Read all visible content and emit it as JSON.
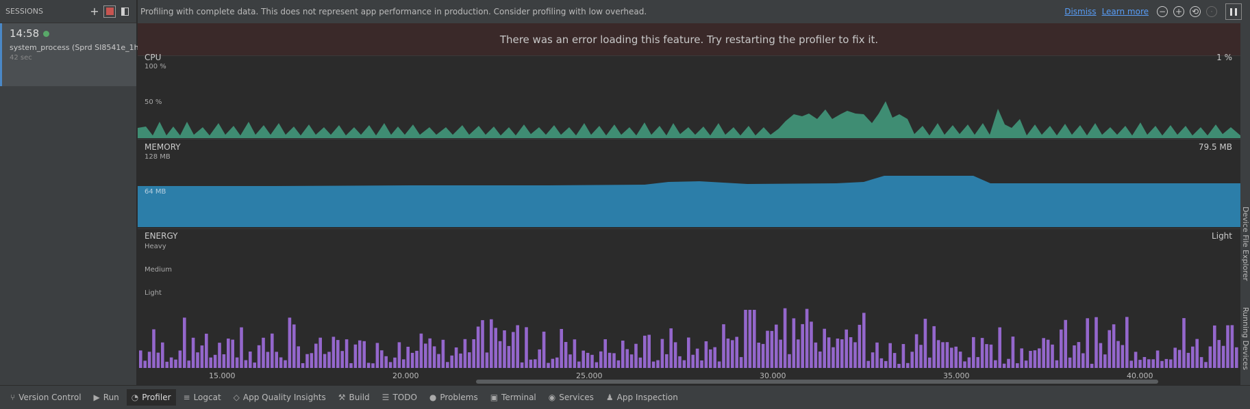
{
  "sessions": {
    "header": "SESSIONS",
    "add_icon": "+",
    "session": {
      "time": "14:58",
      "process": "system_process (Sprd SI8541e_1h...",
      "duration": "42 sec"
    }
  },
  "notice": {
    "message": "Profiling with complete data. This does not represent app performance in production. Consider profiling with low overhead.",
    "dismiss": "Dismiss",
    "learn_more": "Learn more"
  },
  "error_banner": "There was an error loading this feature. Try restarting the profiler to fix it.",
  "cpu": {
    "title": "CPU",
    "value": "1 %",
    "axis": [
      "100 %",
      "50 %"
    ]
  },
  "memory": {
    "title": "MEMORY",
    "value": "79.5 MB",
    "axis": [
      "128 MB",
      "64 MB"
    ]
  },
  "energy": {
    "title": "ENERGY",
    "value": "Light",
    "axis": [
      "Heavy",
      "Medium",
      "Light"
    ]
  },
  "timeline": {
    "ticks": [
      "15.000",
      "20.000",
      "25.000",
      "30.000",
      "35.000",
      "40.000"
    ]
  },
  "right_strip": {
    "tabs": [
      "Device File Explorer",
      "Running Devices"
    ]
  },
  "bottom_bar": {
    "tabs": [
      {
        "label": "Version Control",
        "icon": "branch-icon"
      },
      {
        "label": "Run",
        "icon": "play-icon"
      },
      {
        "label": "Profiler",
        "icon": "profiler-icon",
        "active": true
      },
      {
        "label": "Logcat",
        "icon": "logcat-icon"
      },
      {
        "label": "App Quality Insights",
        "icon": "gem-icon"
      },
      {
        "label": "Build",
        "icon": "hammer-icon"
      },
      {
        "label": "TODO",
        "icon": "list-icon"
      },
      {
        "label": "Problems",
        "icon": "info-icon"
      },
      {
        "label": "Terminal",
        "icon": "terminal-icon"
      },
      {
        "label": "Services",
        "icon": "services-icon"
      },
      {
        "label": "App Inspection",
        "icon": "inspection-icon"
      }
    ]
  },
  "colors": {
    "cpu": "#3f8d73",
    "memory": "#2c7ea9",
    "energy": "#9467cc"
  }
}
